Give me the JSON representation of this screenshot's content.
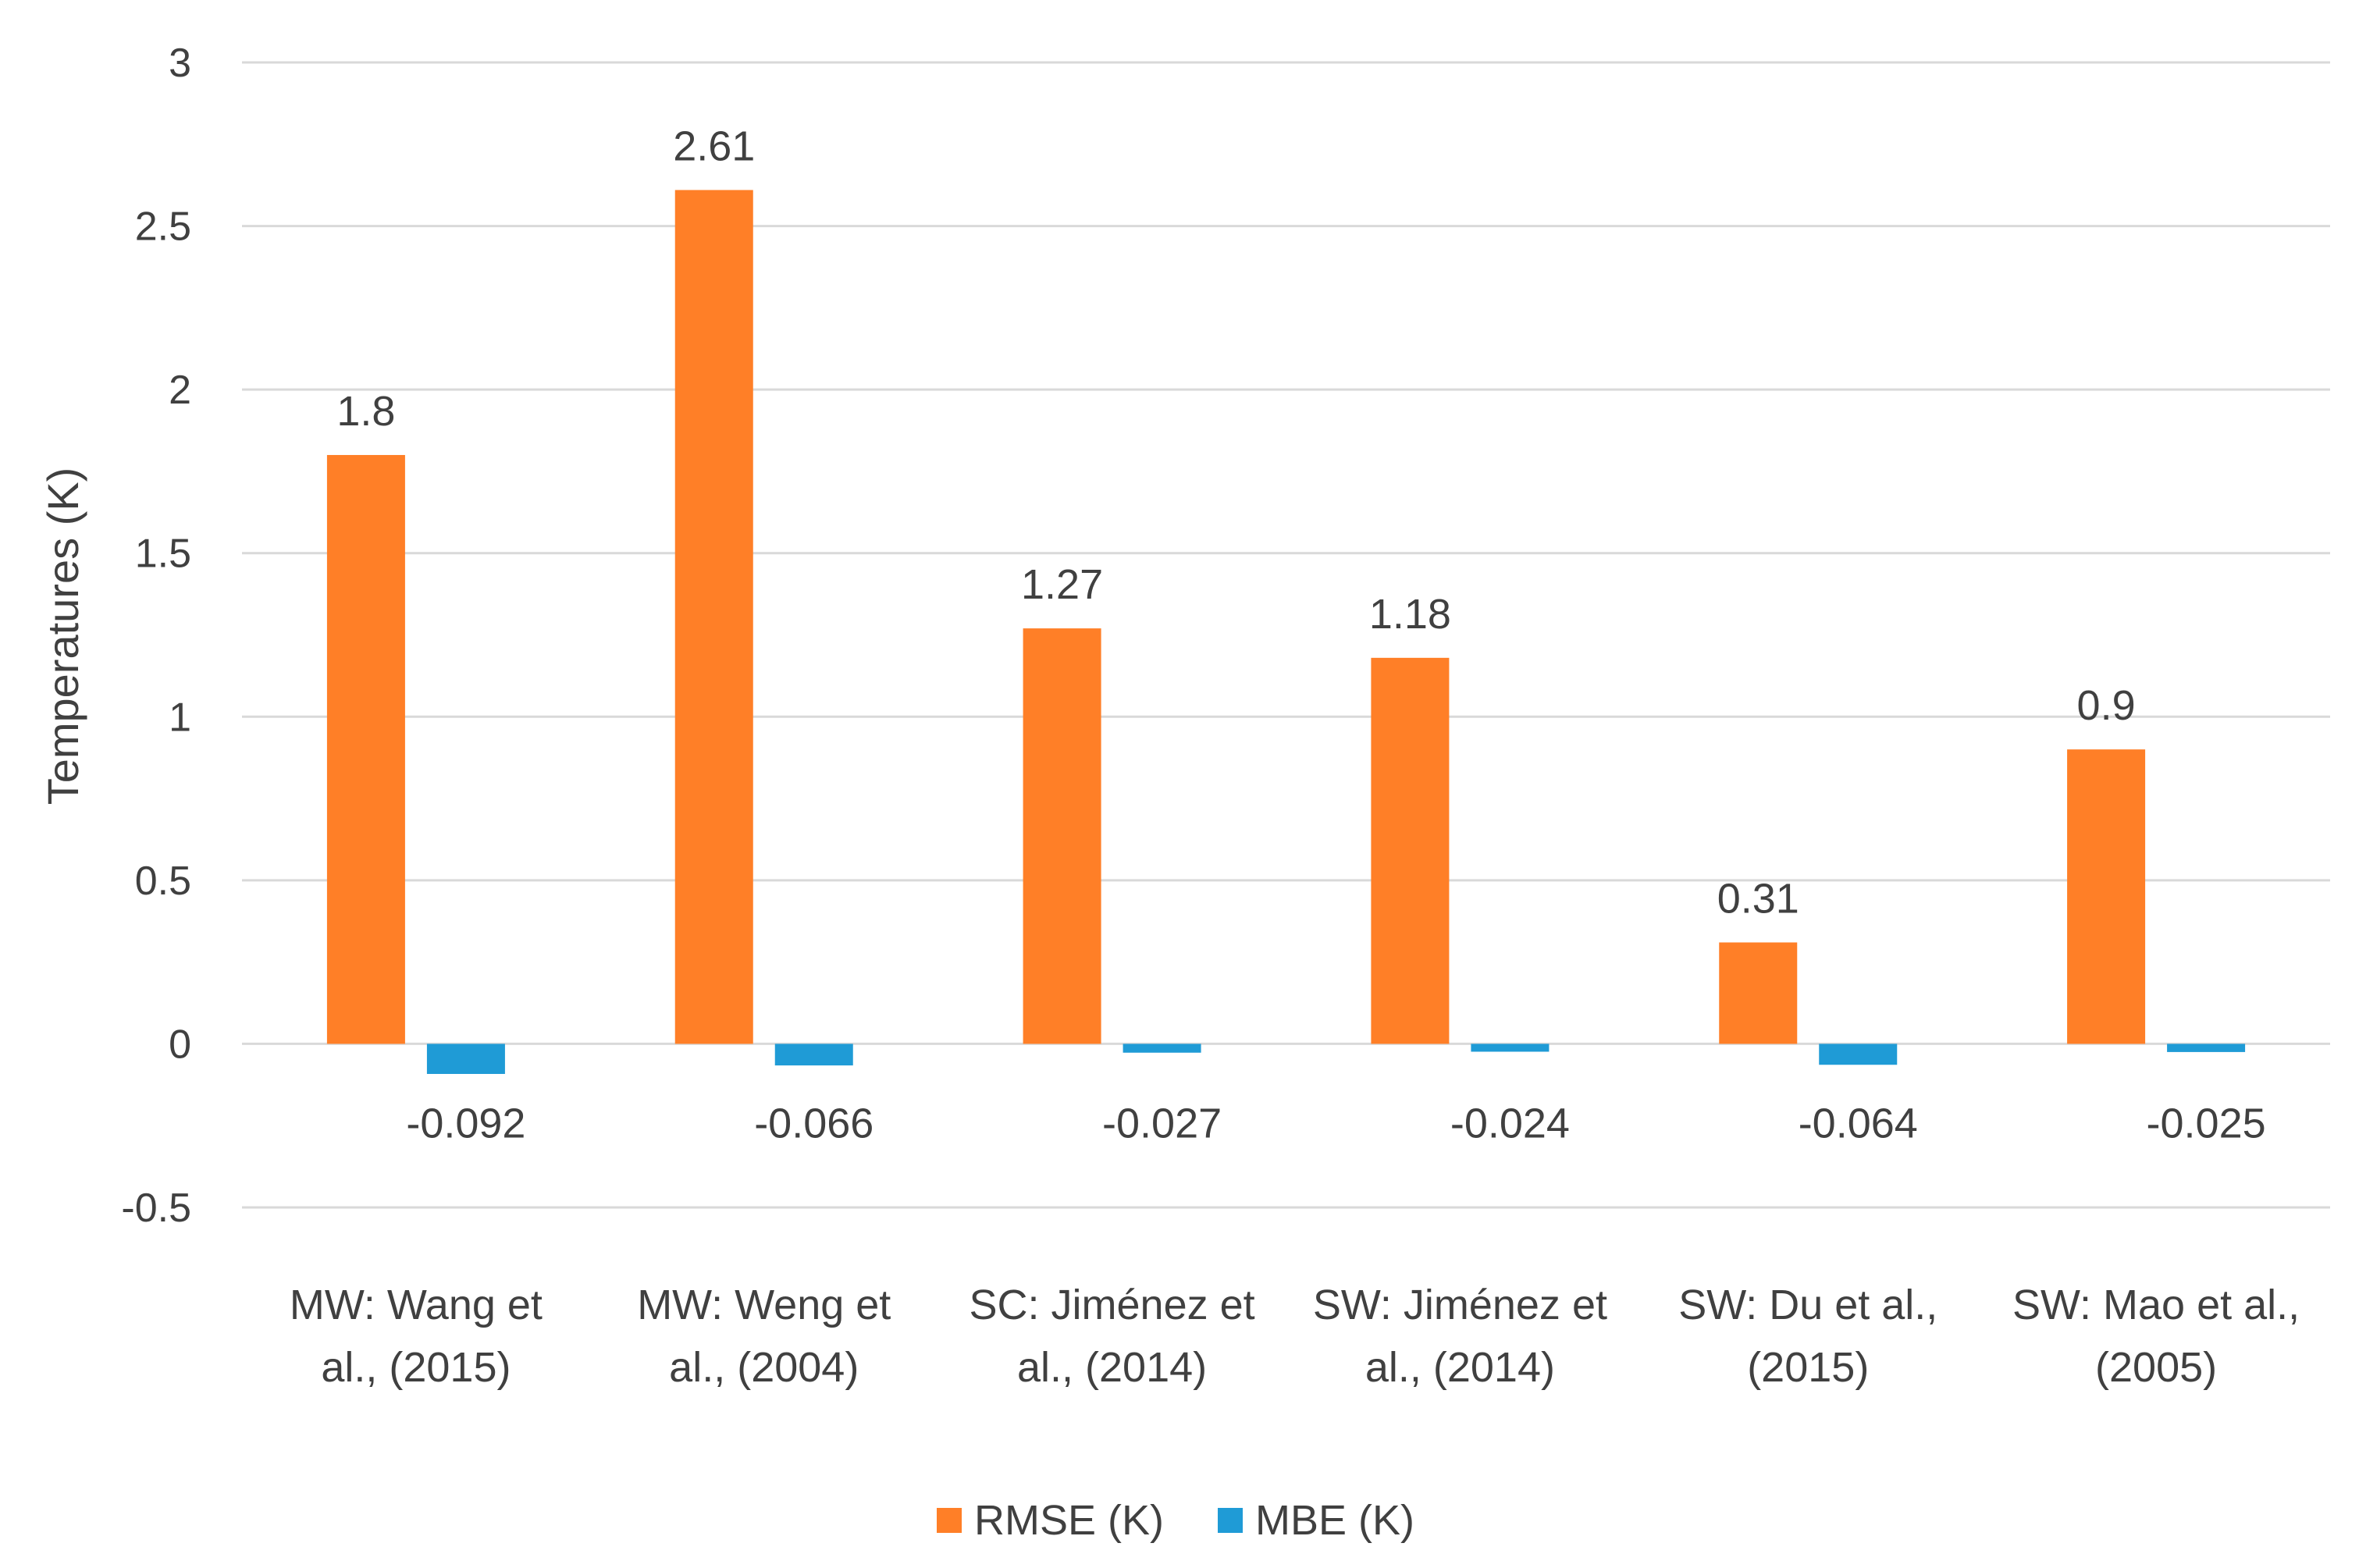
{
  "chart_data": {
    "type": "bar",
    "title": "",
    "xlabel": "",
    "ylabel": "Temperatures (K)",
    "ylim": [
      -0.5,
      3
    ],
    "yticks": [
      3,
      2.5,
      2,
      1.5,
      1,
      0.5,
      0,
      -0.5
    ],
    "ytick_labels": [
      "3",
      "2.5",
      "2",
      "1.5",
      "1",
      "0.5",
      "0",
      "-0.5"
    ],
    "grid": true,
    "legend_position": "bottom",
    "categories": [
      [
        "MW: Wang et",
        "al., (2015)"
      ],
      [
        "MW: Weng et",
        "al., (2004)"
      ],
      [
        "SC: Jiménez et",
        "al., (2014)"
      ],
      [
        "SW: Jiménez et",
        "al., (2014)"
      ],
      [
        "SW: Du et al.,",
        "(2015)"
      ],
      [
        "SW: Mao et al.,",
        "(2005)"
      ]
    ],
    "series": [
      {
        "name": "RMSE (K)",
        "color": "#ff7f27",
        "values": [
          1.8,
          2.61,
          1.27,
          1.18,
          0.31,
          0.9
        ],
        "labels": [
          "1.8",
          "2.61",
          "1.27",
          "1.18",
          "0.31",
          "0.9"
        ]
      },
      {
        "name": "MBE (K)",
        "color": "#1f9bd6",
        "values": [
          -0.092,
          -0.066,
          -0.027,
          -0.024,
          -0.064,
          -0.025
        ],
        "labels": [
          "-0.092",
          "-0.066",
          "-0.027",
          "-0.024",
          "-0.064",
          "-0.025"
        ]
      }
    ]
  }
}
